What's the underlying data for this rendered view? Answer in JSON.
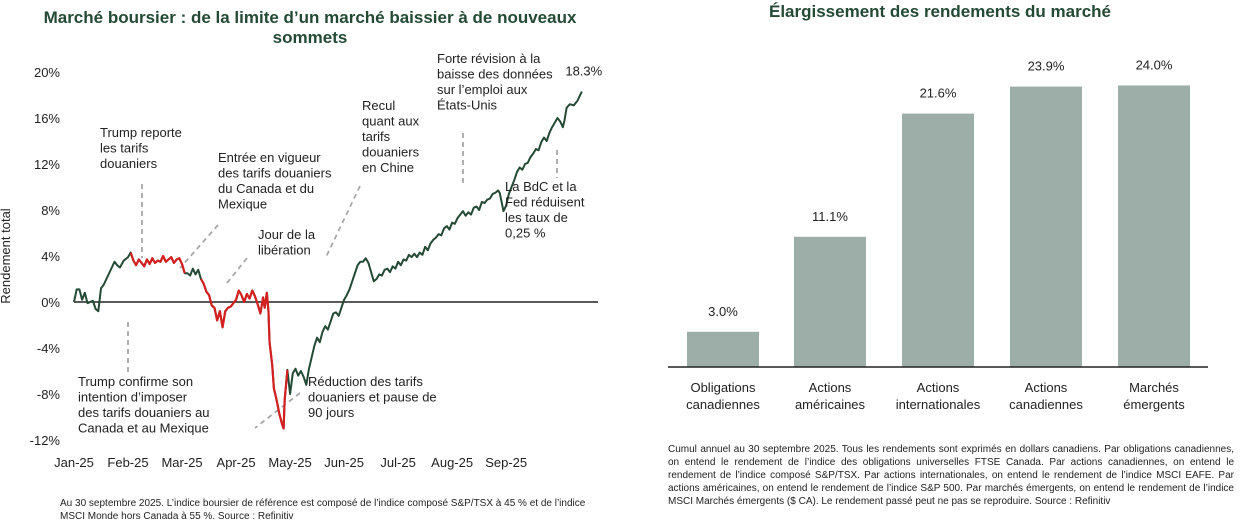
{
  "chart_data": [
    {
      "type": "line",
      "title": "Marché boursier : de la limite d’un marché baissier à de nouveaux sommets",
      "ylabel": "Rendement total",
      "ylim": [
        -12,
        20
      ],
      "yticks": [
        "20%",
        "16%",
        "12%",
        "8%",
        "4%",
        "0%",
        "-4%",
        "-8%",
        "-12%"
      ],
      "xticks": [
        "Jan-25",
        "Feb-25",
        "Mar-25",
        "Apr-25",
        "May-25",
        "Jun-25",
        "Jul-25",
        "Aug-25",
        "Sep-25"
      ],
      "end_label": "18.3%",
      "colors": {
        "main": "#244a35",
        "red": "#d42020",
        "leader": "#a8a8a8"
      },
      "points": [
        [
          0.0,
          0.0
        ],
        [
          0.05,
          1.1
        ],
        [
          0.1,
          1.1
        ],
        [
          0.15,
          0.2
        ],
        [
          0.2,
          0.8
        ],
        [
          0.25,
          -0.1
        ],
        [
          0.35,
          0.1
        ],
        [
          0.4,
          -0.6
        ],
        [
          0.45,
          -0.8
        ],
        [
          0.5,
          1.2
        ],
        [
          0.55,
          1.5
        ],
        [
          0.6,
          2.0
        ],
        [
          0.7,
          3.0
        ],
        [
          0.75,
          3.5
        ],
        [
          0.8,
          3.2
        ],
        [
          0.85,
          3.0
        ],
        [
          0.92,
          3.6
        ],
        [
          1.0,
          3.9
        ],
        [
          1.05,
          4.3
        ],
        [
          1.1,
          3.6
        ],
        [
          1.15,
          3.2
        ],
        [
          1.2,
          3.7
        ],
        [
          1.25,
          3.4
        ],
        [
          1.3,
          3.1
        ],
        [
          1.35,
          3.7
        ],
        [
          1.4,
          3.3
        ],
        [
          1.45,
          3.8
        ],
        [
          1.5,
          3.4
        ],
        [
          1.55,
          3.6
        ],
        [
          1.6,
          3.5
        ],
        [
          1.65,
          4.0
        ],
        [
          1.7,
          3.5
        ],
        [
          1.75,
          3.7
        ],
        [
          1.8,
          3.9
        ],
        [
          1.85,
          3.4
        ],
        [
          1.9,
          3.7
        ],
        [
          1.95,
          3.8
        ],
        [
          2.0,
          3.3
        ],
        [
          2.05,
          2.5
        ],
        [
          2.1,
          2.5
        ],
        [
          2.15,
          2.3
        ],
        [
          2.2,
          2.9
        ],
        [
          2.25,
          2.4
        ],
        [
          2.3,
          2.8
        ],
        [
          2.35,
          2.0
        ],
        [
          2.4,
          1.6
        ],
        [
          2.45,
          0.9
        ],
        [
          2.5,
          0.6
        ],
        [
          2.55,
          -0.3
        ],
        [
          2.6,
          -0.5
        ],
        [
          2.65,
          -1.6
        ],
        [
          2.7,
          -0.8
        ],
        [
          2.75,
          -2.2
        ],
        [
          2.8,
          -0.8
        ],
        [
          2.85,
          -0.5
        ],
        [
          2.9,
          -0.4
        ],
        [
          2.95,
          -0.1
        ],
        [
          3.0,
          0.2
        ],
        [
          3.05,
          1.0
        ],
        [
          3.1,
          0.6
        ],
        [
          3.15,
          0.0
        ],
        [
          3.2,
          0.7
        ],
        [
          3.25,
          0.3
        ],
        [
          3.3,
          1.0
        ],
        [
          3.35,
          0.5
        ],
        [
          3.4,
          -0.2
        ],
        [
          3.45,
          -1.0
        ],
        [
          3.5,
          0.4
        ],
        [
          3.53,
          -0.5
        ],
        [
          3.57,
          0.8
        ],
        [
          3.6,
          -0.8
        ],
        [
          3.62,
          -3.5
        ],
        [
          3.67,
          -5.5
        ],
        [
          3.7,
          -7.5
        ],
        [
          3.75,
          -8.5
        ],
        [
          3.8,
          -9.7
        ],
        [
          3.85,
          -10.6
        ],
        [
          3.88,
          -11.0
        ],
        [
          3.9,
          -8.5
        ],
        [
          3.95,
          -5.9
        ],
        [
          4.0,
          -8.0
        ],
        [
          4.05,
          -6.2
        ],
        [
          4.1,
          -5.8
        ],
        [
          4.15,
          -6.4
        ],
        [
          4.2,
          -6.0
        ],
        [
          4.25,
          -6.5
        ],
        [
          4.3,
          -7.2
        ],
        [
          4.35,
          -5.8
        ],
        [
          4.4,
          -4.8
        ],
        [
          4.45,
          -3.8
        ],
        [
          4.5,
          -3.1
        ],
        [
          4.55,
          -3.5
        ],
        [
          4.6,
          -2.6
        ],
        [
          4.65,
          -2.1
        ],
        [
          4.7,
          -2.4
        ],
        [
          4.75,
          -1.7
        ],
        [
          4.8,
          -1.0
        ],
        [
          4.85,
          -0.9
        ],
        [
          4.9,
          -1.2
        ],
        [
          4.95,
          -0.5
        ],
        [
          5.0,
          0.2
        ],
        [
          5.05,
          0.6
        ],
        [
          5.1,
          1.1
        ],
        [
          5.15,
          1.8
        ],
        [
          5.2,
          2.5
        ],
        [
          5.25,
          3.2
        ],
        [
          5.3,
          3.5
        ],
        [
          5.35,
          3.5
        ],
        [
          5.4,
          3.8
        ],
        [
          5.45,
          3.4
        ],
        [
          5.5,
          2.6
        ],
        [
          5.55,
          1.8
        ],
        [
          5.6,
          2.0
        ],
        [
          5.65,
          2.4
        ],
        [
          5.7,
          2.3
        ],
        [
          5.75,
          2.8
        ],
        [
          5.8,
          2.9
        ],
        [
          5.85,
          2.6
        ],
        [
          5.9,
          3.1
        ],
        [
          5.95,
          2.9
        ],
        [
          6.0,
          3.5
        ],
        [
          6.05,
          3.2
        ],
        [
          6.1,
          3.7
        ],
        [
          6.15,
          3.6
        ],
        [
          6.2,
          4.1
        ],
        [
          6.25,
          3.9
        ],
        [
          6.3,
          4.2
        ],
        [
          6.35,
          3.9
        ],
        [
          6.4,
          4.3
        ],
        [
          6.45,
          4.1
        ],
        [
          6.5,
          4.8
        ],
        [
          6.55,
          4.5
        ],
        [
          6.6,
          5.1
        ],
        [
          6.65,
          5.4
        ],
        [
          6.7,
          5.6
        ],
        [
          6.75,
          5.9
        ],
        [
          6.8,
          5.8
        ],
        [
          6.85,
          6.4
        ],
        [
          6.9,
          6.6
        ],
        [
          6.95,
          6.3
        ],
        [
          7.0,
          6.9
        ],
        [
          7.05,
          6.8
        ],
        [
          7.1,
          7.3
        ],
        [
          7.15,
          7.6
        ],
        [
          7.2,
          7.9
        ],
        [
          7.25,
          7.5
        ],
        [
          7.3,
          7.8
        ],
        [
          7.35,
          7.6
        ],
        [
          7.4,
          8.2
        ],
        [
          7.45,
          8.3
        ],
        [
          7.5,
          8.0
        ],
        [
          7.55,
          8.7
        ],
        [
          7.6,
          8.6
        ],
        [
          7.65,
          8.9
        ],
        [
          7.7,
          9.0
        ],
        [
          7.75,
          9.4
        ],
        [
          7.8,
          9.5
        ],
        [
          7.85,
          9.7
        ],
        [
          7.88,
          9.5
        ],
        [
          7.92,
          8.6
        ],
        [
          7.95,
          7.9
        ],
        [
          8.0,
          8.4
        ],
        [
          8.05,
          9.4
        ],
        [
          8.1,
          10.0
        ],
        [
          8.15,
          10.6
        ],
        [
          8.2,
          11.3
        ],
        [
          8.25,
          11.7
        ],
        [
          8.3,
          11.5
        ],
        [
          8.35,
          12.0
        ],
        [
          8.4,
          12.1
        ],
        [
          8.45,
          12.6
        ],
        [
          8.5,
          12.9
        ],
        [
          8.55,
          13.3
        ],
        [
          8.6,
          13.2
        ],
        [
          8.65,
          13.9
        ],
        [
          8.7,
          14.3
        ],
        [
          8.75,
          14.0
        ],
        [
          8.8,
          14.7
        ],
        [
          8.85,
          15.2
        ],
        [
          8.9,
          15.6
        ],
        [
          8.95,
          16.0
        ],
        [
          9.0,
          15.7
        ],
        [
          9.05,
          15.2
        ],
        [
          9.08,
          15.8
        ],
        [
          9.12,
          16.9
        ],
        [
          9.18,
          17.2
        ],
        [
          9.25,
          17.1
        ],
        [
          9.32,
          17.5
        ],
        [
          9.4,
          18.3
        ]
      ],
      "red_segments": [
        [
          1.02,
          2.07
        ],
        [
          2.35,
          3.97
        ]
      ],
      "annotations": [
        {
          "lines": [
            "Trump reporte",
            "les tarifs",
            "douaniers"
          ],
          "anchor": [
            1.35,
            3.6
          ]
        },
        {
          "lines": [
            "Entrée en vigueur",
            "des tarifs douaniers",
            "du Canada et du",
            "Mexique"
          ],
          "anchor": [
            2.1,
            2.5
          ]
        },
        {
          "lines": [
            "Jour de la",
            "libération"
          ],
          "anchor": [
            3.05,
            1.6
          ]
        },
        {
          "lines": [
            "Recul",
            "quant aux",
            "tarifs",
            "douaniers",
            "en Chine"
          ],
          "anchor": [
            5.25,
            3.6
          ]
        },
        {
          "lines": [
            "Forte révision à la",
            "baisse des données",
            "sur l’emploi aux",
            "États-Unis"
          ],
          "anchor": [
            7.8,
            9.6
          ]
        },
        {
          "lines": [
            "La BdC et la",
            "Fed réduisent",
            "les taux de",
            "0,25 %"
          ],
          "anchor": [
            9.0,
            15.6
          ]
        },
        {
          "lines": [
            "Trump confirme son",
            "intention d’imposer",
            "des tarifs douaniers au",
            "Canada et au Mexique"
          ],
          "anchor": [
            1.02,
            0.2
          ]
        },
        {
          "lines": [
            "Réduction des tarifs",
            "douaniers et pause de",
            "90 jours"
          ],
          "anchor": [
            3.88,
            -11.0
          ]
        }
      ]
    },
    {
      "type": "bar",
      "title": "Élargissement des rendements du marché",
      "ylim": [
        0,
        26
      ],
      "categories": [
        [
          "Obligations",
          "canadiennes"
        ],
        [
          "Actions",
          "américaines"
        ],
        [
          "Actions",
          "internationales"
        ],
        [
          "Actions",
          "canadiennes"
        ],
        [
          "Marchés",
          "émergents"
        ]
      ],
      "values": [
        3.0,
        11.1,
        21.6,
        23.9,
        24.0
      ],
      "value_labels": [
        "3.0%",
        "11.1%",
        "21.6%",
        "23.9%",
        "24.0%"
      ],
      "colors": {
        "bar": "#9dada8",
        "axis": "#222222"
      }
    }
  ],
  "footnotes": {
    "left": "Au 30 septembre 2025. L’indice boursier de référence est composé de l’indice composé S&P/TSX à 45 % et de l’indice MSCI Monde hors Canada à 55 %. Source : Refinitiv",
    "right": "Cumul annuel au 30 septembre 2025. Tous les rendements sont exprimés en dollars canadiens. Par obligations canadiennes, on entend le rendement de l’indice des obligations universelles FTSE Canada. Par actions canadiennes, on entend le rendement de l’indice composé S&P/TSX. Par actions internationales, on entend le rendement de l’indice MSCI EAFE. Par actions américaines, on entend le rendement de l’indice S&P 500. Par marchés émergents, on entend le rendement de l’indice MSCI Marchés émergents ($ CA). Le rendement passé peut ne pas se reproduire. Source : Refinitiv"
  }
}
